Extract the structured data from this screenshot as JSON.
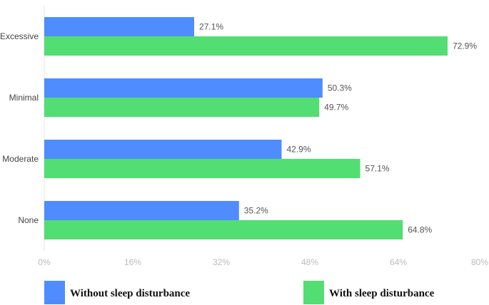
{
  "chart_data": {
    "type": "bar",
    "orientation": "horizontal",
    "title": "",
    "xlabel": "",
    "ylabel": "",
    "categories": [
      "Excessive",
      "Minimal",
      "Moderate",
      "None"
    ],
    "series": [
      {
        "name": "Without sleep disturbance",
        "color": "#4f8cff",
        "values": [
          27.1,
          50.3,
          42.9,
          35.2
        ]
      },
      {
        "name": "With sleep disturbance",
        "color": "#52de72",
        "values": [
          72.9,
          49.7,
          57.1,
          64.8
        ]
      }
    ],
    "xlim": [
      0,
      80
    ],
    "xticks": [
      0,
      16,
      32,
      48,
      64,
      80
    ],
    "tick_suffix": "%",
    "value_suffix": "%",
    "grid": false,
    "legend_position": "bottom"
  }
}
